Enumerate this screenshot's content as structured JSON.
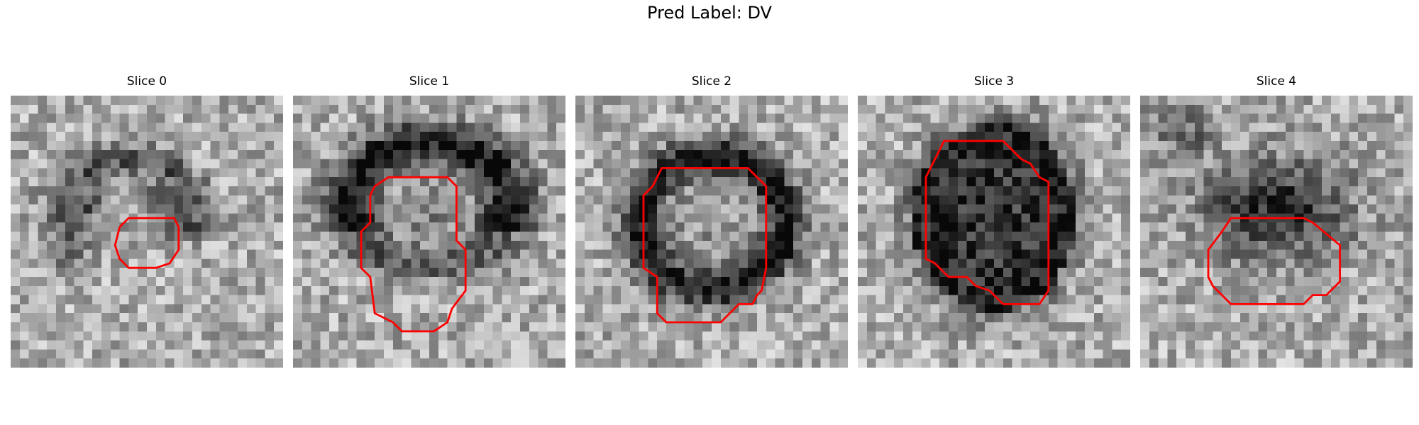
{
  "figure": {
    "title": "Pred Label: DV"
  },
  "panels": [
    {
      "title": "Slice 0",
      "structure": "vessel-wall-partial",
      "seed": 11,
      "overlay_color": "#ff0000"
    },
    {
      "title": "Slice 1",
      "structure": "arc-ring",
      "seed": 23,
      "overlay_color": "#ff0000"
    },
    {
      "title": "Slice 2",
      "structure": "full-ring",
      "seed": 37,
      "overlay_color": "#ff0000"
    },
    {
      "title": "Slice 3",
      "structure": "dark-blob",
      "seed": 41,
      "overlay_color": "#ff0000"
    },
    {
      "title": "Slice 4",
      "structure": "dark-blob-upper",
      "seed": 59,
      "overlay_color": "#ff0000"
    }
  ],
  "colors": {
    "background": "#ffffff",
    "contour": "#ff0000"
  }
}
